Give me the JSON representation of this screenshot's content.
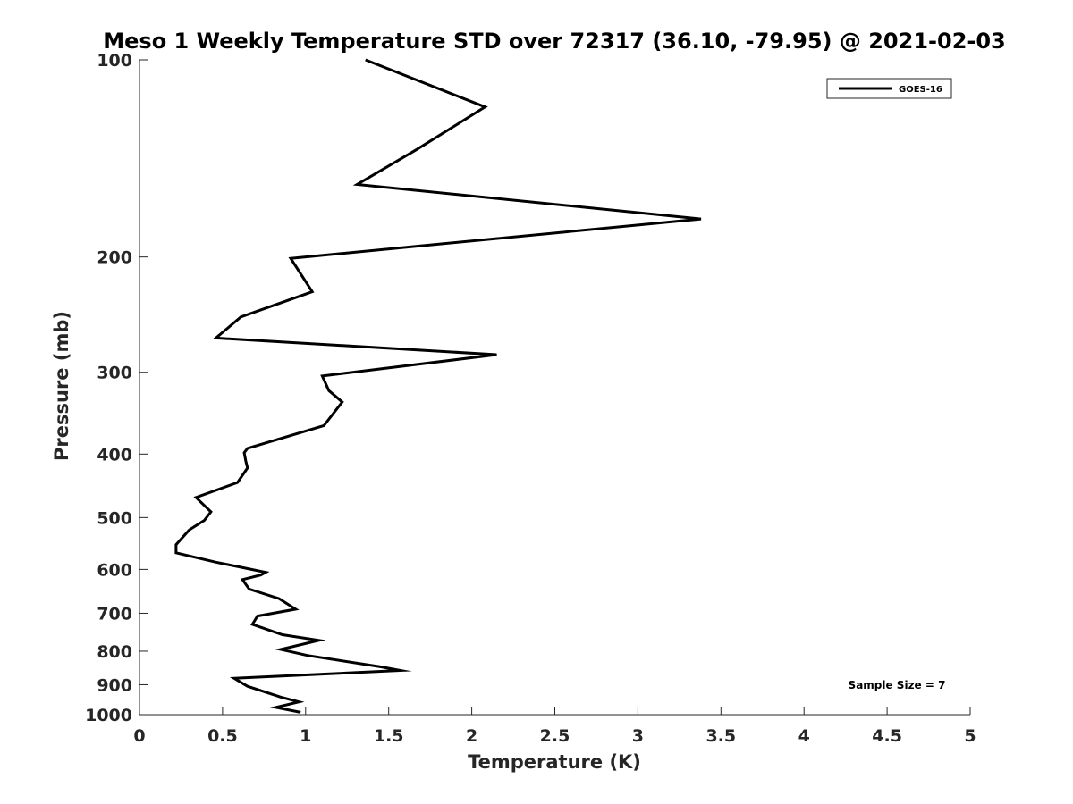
{
  "chart_data": {
    "type": "line",
    "title": "Meso 1 Weekly Temperature STD over 72317 (36.10, -79.95) @ 2021-02-03",
    "xlabel": "Temperature (K)",
    "ylabel": "Pressure (mb)",
    "xlim": [
      0,
      5
    ],
    "ylim": [
      100,
      1000
    ],
    "y_scale": "log",
    "y_reversed": true,
    "x_ticks": [
      "0",
      "0.5",
      "1",
      "1.5",
      "2",
      "2.5",
      "3",
      "3.5",
      "4",
      "4.5",
      "5"
    ],
    "y_ticks": [
      "100",
      "200",
      "300",
      "400",
      "500",
      "600",
      "700",
      "800",
      "900",
      "1000"
    ],
    "grid": false,
    "legend": {
      "placement": "top-right",
      "entries": [
        "GOES-16"
      ]
    },
    "annotation": "Sample Size = 7",
    "series": [
      {
        "name": "GOES-16",
        "color": "#000000",
        "points": [
          [
            1.36,
            100
          ],
          [
            2.08,
            118
          ],
          [
            1.67,
            137
          ],
          [
            1.31,
            155
          ],
          [
            3.38,
            175
          ],
          [
            0.91,
            201
          ],
          [
            1.04,
            226
          ],
          [
            0.61,
            247
          ],
          [
            0.46,
            266
          ],
          [
            2.15,
            282
          ],
          [
            1.1,
            304
          ],
          [
            1.14,
            320
          ],
          [
            1.22,
            333
          ],
          [
            1.11,
            362
          ],
          [
            0.65,
            392
          ],
          [
            0.63,
            398
          ],
          [
            0.64,
            410
          ],
          [
            0.65,
            420
          ],
          [
            0.59,
            442
          ],
          [
            0.34,
            466
          ],
          [
            0.43,
            490
          ],
          [
            0.39,
            505
          ],
          [
            0.3,
            522
          ],
          [
            0.22,
            550
          ],
          [
            0.22,
            566
          ],
          [
            0.46,
            585
          ],
          [
            0.76,
            606
          ],
          [
            0.73,
            612
          ],
          [
            0.62,
            622
          ],
          [
            0.66,
            643
          ],
          [
            0.84,
            665
          ],
          [
            0.94,
            690
          ],
          [
            0.71,
            707
          ],
          [
            0.68,
            728
          ],
          [
            0.86,
            755
          ],
          [
            1.08,
            770
          ],
          [
            0.85,
            795
          ],
          [
            1.01,
            812
          ],
          [
            1.45,
            845
          ],
          [
            1.57,
            856
          ],
          [
            0.57,
            880
          ],
          [
            0.65,
            905
          ],
          [
            0.85,
            940
          ],
          [
            0.96,
            956
          ],
          [
            0.82,
            975
          ],
          [
            0.97,
            992
          ]
        ]
      }
    ]
  }
}
